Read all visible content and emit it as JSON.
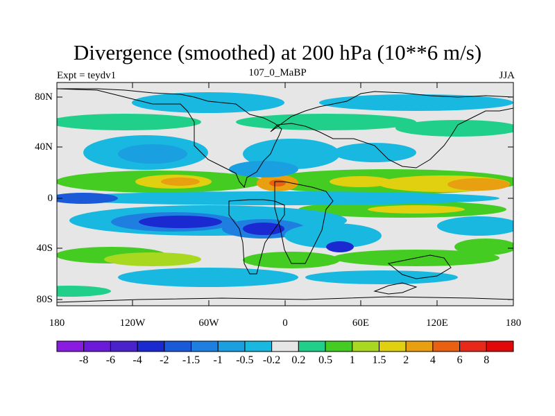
{
  "title": "Divergence (smoothed) at 200 hPa (10**6 m/s)",
  "subtitle_left": "Expt = teydv1",
  "subtitle_center": "107_0_MaBP",
  "subtitle_right": "JJA",
  "y_ticks": [
    {
      "label": "80N",
      "lat": 80
    },
    {
      "label": "40N",
      "lat": 40
    },
    {
      "label": "0",
      "lat": 0
    },
    {
      "label": "40S",
      "lat": -40
    },
    {
      "label": "80S",
      "lat": -80
    }
  ],
  "x_ticks": [
    {
      "label": "180",
      "lon": -180
    },
    {
      "label": "120W",
      "lon": -120
    },
    {
      "label": "60W",
      "lon": -60
    },
    {
      "label": "0",
      "lon": 0
    },
    {
      "label": "60E",
      "lon": 60
    },
    {
      "label": "120E",
      "lon": 120
    },
    {
      "label": "180",
      "lon": 180
    }
  ],
  "colorbar": {
    "colors": [
      "#8a1be0",
      "#6a1ad8",
      "#4a22cc",
      "#1a2ad0",
      "#1a5ad8",
      "#1f7fe0",
      "#1aa0e0",
      "#18b8e0",
      "#e6e6e6",
      "#20d08a",
      "#44cc22",
      "#a8d820",
      "#e0d010",
      "#e8a010",
      "#e86010",
      "#e82818",
      "#e00808"
    ],
    "labels": [
      "-8",
      "-6",
      "-4",
      "-2",
      "-1.5",
      "-1",
      "-0.5",
      "-0.2",
      "0.2",
      "0.5",
      "1",
      "1.5",
      "2",
      "4",
      "6",
      "8"
    ]
  }
}
